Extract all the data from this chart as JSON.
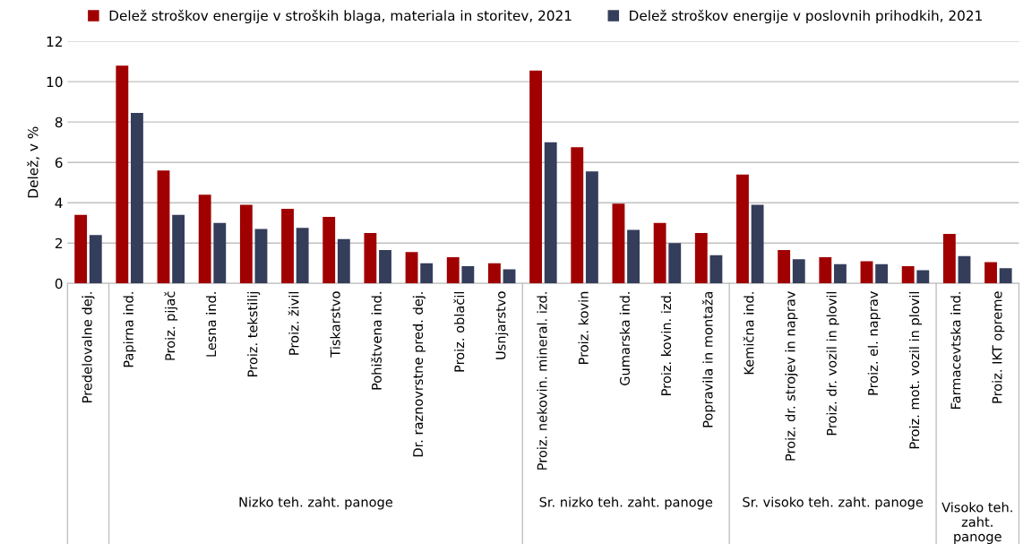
{
  "chart_data": {
    "type": "bar",
    "ylabel": "Delež, v %",
    "categories": [
      "Predelovalne dej.",
      "Papirna ind.",
      "Proiz. pijač",
      "Lesna ind.",
      "Proiz. tekstilij",
      "Proiz. živil",
      "Tiskarstvo",
      "Pohištvena ind.",
      "Dr. raznovrstne pred. dej.",
      "Proiz. oblačil",
      "Usnjarstvo",
      "Proiz. nekovin. mineral. izd.",
      "Proiz. kovin",
      "Gumarska ind.",
      "Proiz. kovin. izd.",
      "Popravila in montaža",
      "Kemična ind.",
      "Proiz. dr. strojev in naprav",
      "Proiz. dr. vozil in plovil",
      "Proiz. el. naprav",
      "Proiz. mot. vozil in plovil",
      "Farmacevtska ind.",
      "Proiz. IKT opreme"
    ],
    "series": [
      {
        "name": "Delež stroškov energije v stroških blaga, materiala in storitev, 2021",
        "color": "#a00000",
        "values": [
          3.4,
          10.8,
          5.6,
          4.4,
          3.9,
          3.7,
          3.3,
          2.5,
          1.55,
          1.3,
          1.0,
          10.55,
          6.75,
          3.95,
          3.0,
          2.5,
          5.4,
          1.65,
          1.3,
          1.1,
          0.85,
          2.45,
          1.05
        ]
      },
      {
        "name": "Delež stroškov energije v poslovnih prihodkih, 2021",
        "color": "#343d5a",
        "values": [
          2.4,
          8.45,
          3.4,
          3.0,
          2.7,
          2.75,
          2.2,
          1.65,
          1.0,
          0.85,
          0.7,
          7.0,
          5.55,
          2.65,
          2.0,
          1.4,
          3.9,
          1.2,
          0.95,
          0.95,
          0.65,
          1.35,
          0.75
        ]
      }
    ],
    "ylim": [
      0,
      12
    ],
    "yticks": [
      0,
      2,
      4,
      6,
      8,
      10,
      12
    ],
    "grid": "y",
    "legend": "top",
    "annotations": [
      "Nizko teh. zaht. panoge",
      "Sr. nizko teh. zaht. panoge",
      "Sr. visoko teh. zaht. panoge",
      "Visoko teh.\nzaht.\npanoge"
    ]
  }
}
